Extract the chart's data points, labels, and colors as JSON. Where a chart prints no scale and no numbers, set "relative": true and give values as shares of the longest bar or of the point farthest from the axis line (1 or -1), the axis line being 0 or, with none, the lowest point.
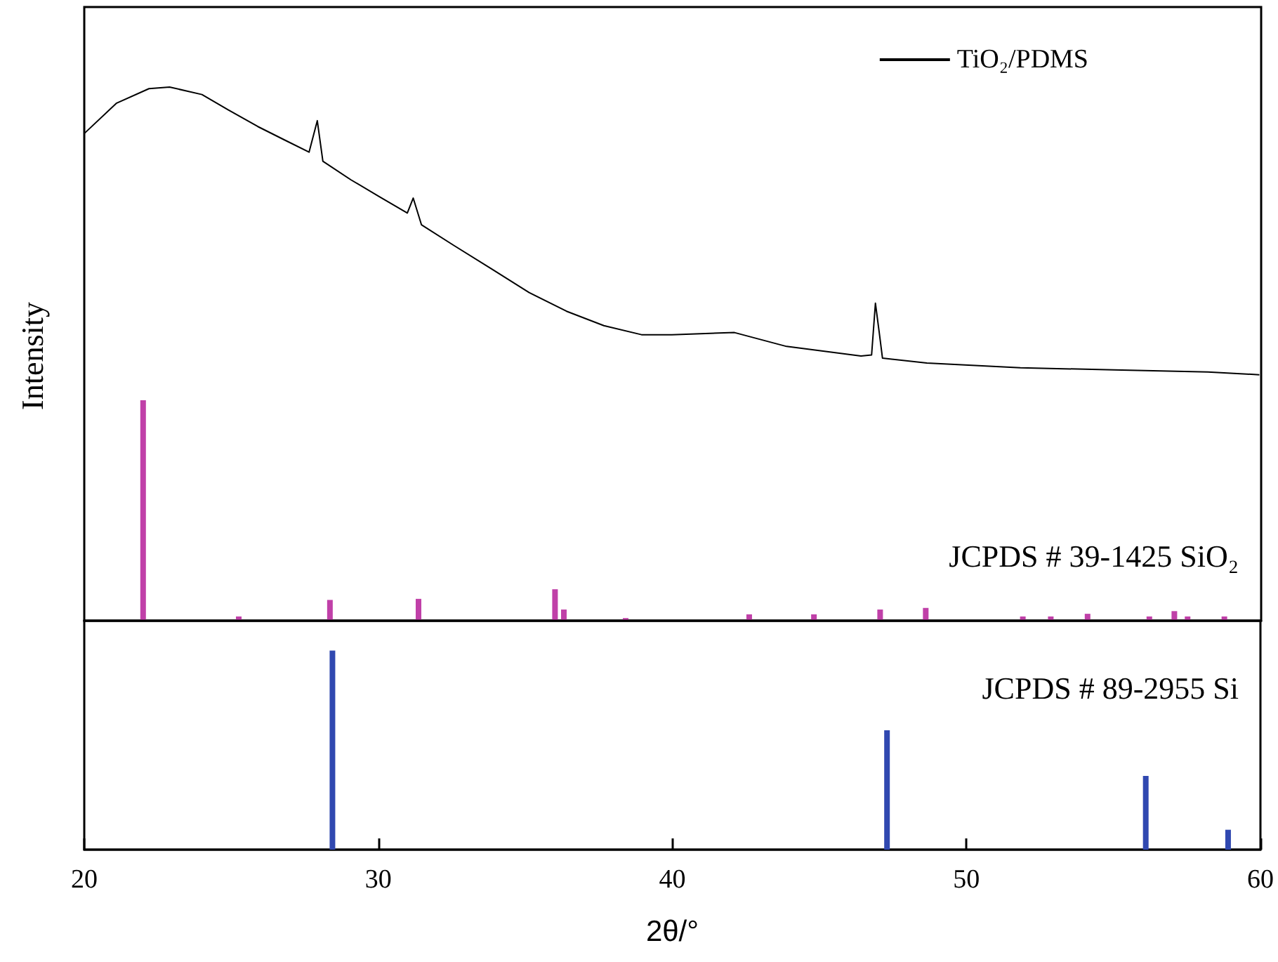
{
  "chart_data": [
    {
      "type": "line",
      "ylabel": "Intensity",
      "relative": true,
      "legend": "top right",
      "grid": false,
      "tick_labels": false,
      "xlim": [
        20,
        60
      ],
      "marker": "none",
      "series": [
        {
          "name": "TiO₂/PDMS",
          "color": "#000000",
          "x": [
            20.0,
            21.1,
            22.2,
            22.9,
            24.0,
            24.9,
            25.9,
            26.84,
            27.64,
            27.92,
            28.11,
            29.07,
            30.02,
            30.98,
            31.18,
            31.46,
            32.57,
            33.85,
            35.12,
            36.39,
            37.66,
            38.94,
            39.97,
            42.1,
            43.87,
            46.4,
            46.76,
            46.89,
            47.02,
            47.13,
            48.64,
            51.82,
            55.0,
            58.19,
            59.94
          ],
          "values": [
            0.913,
            0.97,
            0.997,
            1,
            0.986,
            0.957,
            0.926,
            0.9,
            0.878,
            0.937,
            0.861,
            0.826,
            0.795,
            0.764,
            0.792,
            0.742,
            0.703,
            0.659,
            0.615,
            0.58,
            0.553,
            0.536,
            0.536,
            0.54,
            0.514,
            0.496,
            0.498,
            0.595,
            0.54,
            0.492,
            0.483,
            0.474,
            0.47,
            0.466,
            0.461
          ]
        },
        {
          "name": "JCPDS # 39-1425 SiO₂",
          "type": "bar",
          "color": "#c040a8",
          "x": [
            22.0,
            25.25,
            28.35,
            31.36,
            36.0,
            36.3,
            38.4,
            42.6,
            44.8,
            47.05,
            48.6,
            51.9,
            52.85,
            54.1,
            56.2,
            57.05,
            57.5,
            58.75
          ],
          "values": [
            0.413,
            0.008,
            0.039,
            0.041,
            0.059,
            0.021,
            0.005,
            0.012,
            0.012,
            0.021,
            0.024,
            0.008,
            0.008,
            0.013,
            0.008,
            0.018,
            0.008,
            0.008
          ]
        }
      ]
    },
    {
      "type": "bar",
      "xlabel": "2θ/°",
      "relative": true,
      "grid": false,
      "tick_labels": "x",
      "xlim": [
        20,
        60
      ],
      "xticks": [
        20,
        30,
        40,
        50,
        60
      ],
      "series": [
        {
          "name": "JCPDS # 89-2955 Si",
          "color": "#3048b0",
          "x": [
            28.44,
            47.3,
            56.1,
            58.9
          ],
          "values": [
            1,
            0.6,
            0.37,
            0.1
          ]
        }
      ]
    }
  ]
}
